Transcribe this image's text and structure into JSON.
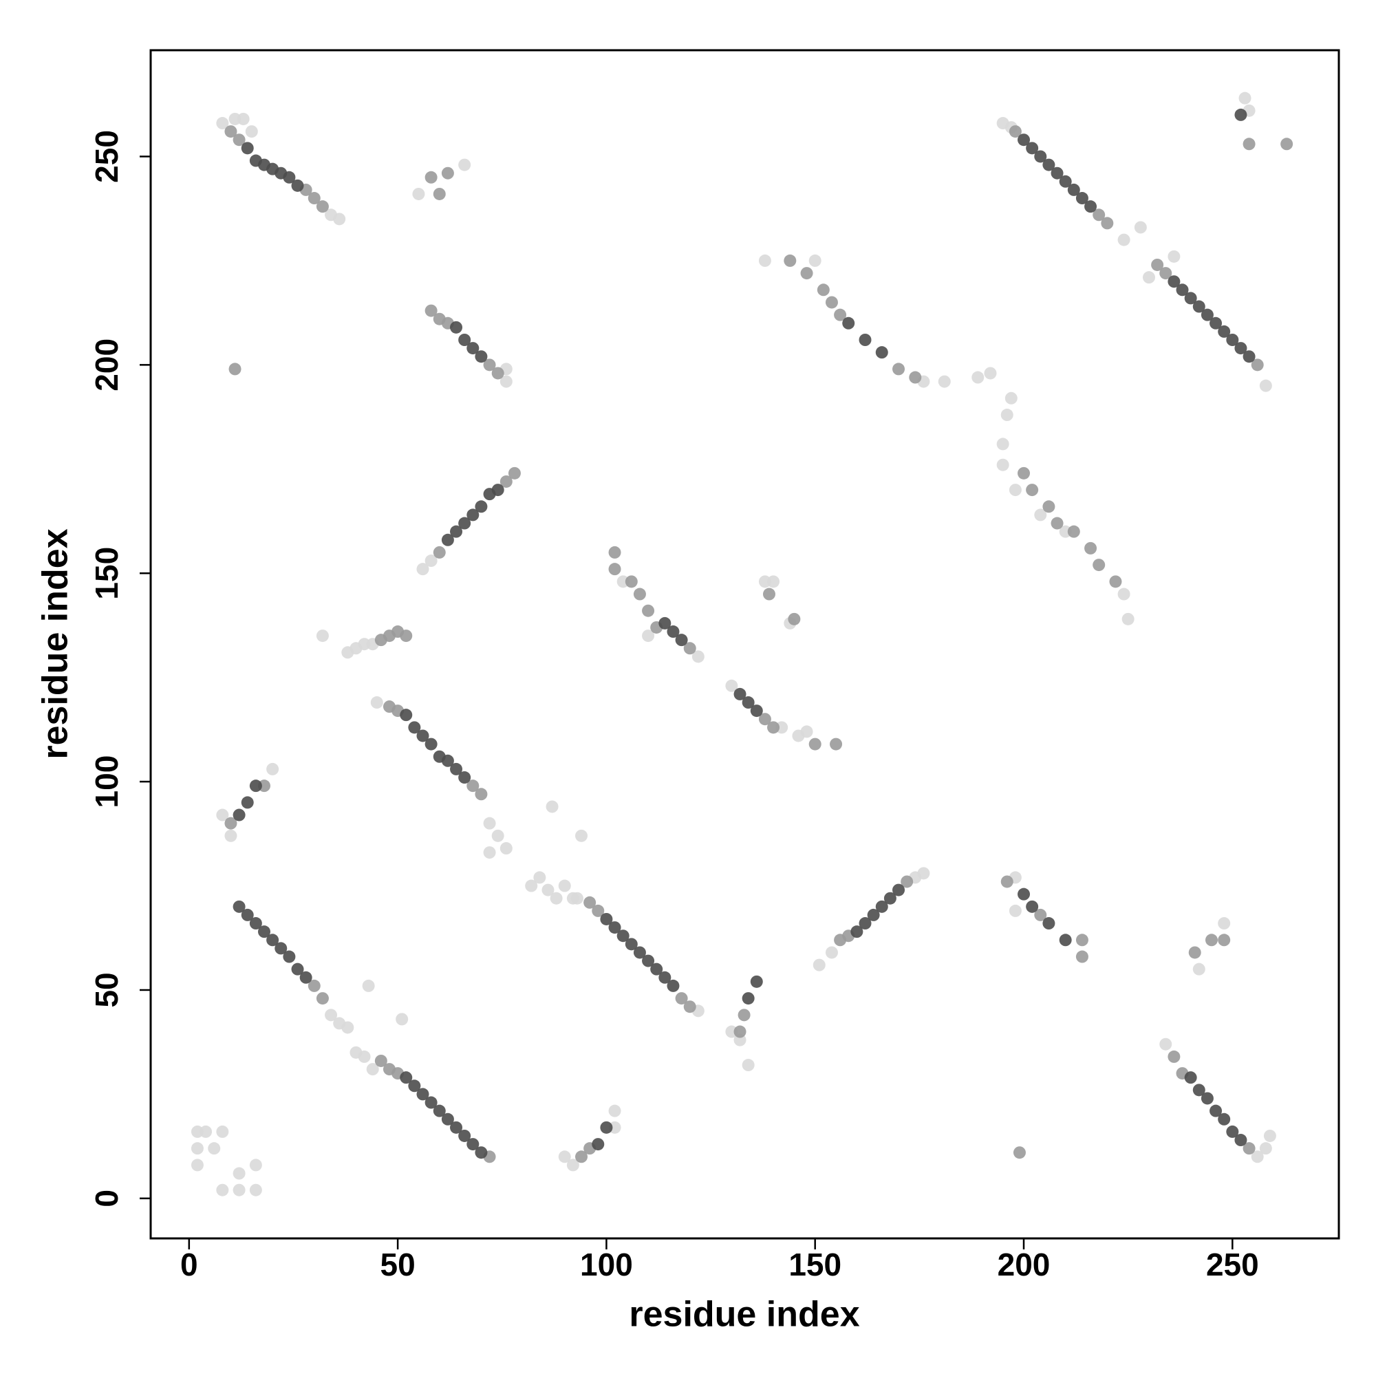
{
  "chart_data": {
    "type": "scatter",
    "xlabel": "residue index",
    "ylabel": "residue index",
    "xlim": [
      -9.2,
      275.5
    ],
    "ylim": [
      -9.6,
      275.5
    ],
    "xticks": [
      0,
      50,
      100,
      150,
      200,
      250
    ],
    "yticks": [
      0,
      50,
      100,
      150,
      200,
      250
    ],
    "series": [
      {
        "color": "#d9d9d9",
        "x": [
          8,
          11,
          13,
          15,
          34,
          36,
          55,
          66,
          76,
          76,
          56,
          58,
          32,
          38,
          40,
          42,
          44,
          45,
          72,
          74,
          76,
          72,
          8,
          10,
          20,
          34,
          36,
          38,
          40,
          42,
          44,
          2,
          4,
          2,
          6,
          2,
          8,
          12,
          12,
          16,
          8,
          16,
          43,
          51,
          82,
          84,
          86,
          88,
          90,
          87,
          94,
          92,
          90,
          92,
          102,
          102,
          93,
          122,
          104,
          110,
          122,
          130,
          142,
          146,
          148,
          130,
          132,
          134,
          138,
          140,
          144,
          138,
          150,
          176,
          181,
          151,
          154,
          174,
          176,
          189,
          192,
          196,
          197,
          195,
          195,
          198,
          204,
          210,
          224,
          225,
          198,
          198,
          195,
          197,
          224,
          228,
          230,
          236,
          258,
          253,
          254,
          242,
          248,
          234,
          256,
          258,
          259
        ],
        "y": [
          258,
          259,
          259,
          256,
          236,
          235,
          241,
          248,
          199,
          196,
          151,
          153,
          135,
          131,
          132,
          133,
          133,
          119,
          90,
          87,
          84,
          83,
          92,
          87,
          103,
          44,
          42,
          41,
          35,
          34,
          31,
          16,
          16,
          12,
          12,
          8,
          2,
          2,
          6,
          2,
          16,
          8,
          51,
          43,
          75,
          77,
          74,
          72,
          75,
          94,
          87,
          72,
          10,
          8,
          21,
          17,
          72,
          45,
          148,
          135,
          130,
          123,
          113,
          111,
          112,
          40,
          38,
          32,
          148,
          148,
          138,
          225,
          225,
          196,
          196,
          56,
          59,
          77,
          78,
          197,
          198,
          188,
          192,
          181,
          176,
          170,
          164,
          160,
          145,
          139,
          77,
          69,
          258,
          257,
          230,
          233,
          221,
          226,
          195,
          264,
          261,
          55,
          66,
          37,
          10,
          12,
          15
        ]
      },
      {
        "color": "#9a9a9a",
        "x": [
          10,
          12,
          28,
          30,
          32,
          58,
          60,
          62,
          58,
          60,
          62,
          72,
          74,
          60,
          76,
          78,
          50,
          52,
          46,
          48,
          48,
          50,
          68,
          70,
          10,
          18,
          30,
          32,
          46,
          48,
          50,
          72,
          94,
          96,
          96,
          98,
          118,
          120,
          102,
          102,
          106,
          108,
          110,
          112,
          120,
          138,
          140,
          150,
          155,
          132,
          133,
          139,
          145,
          144,
          148,
          152,
          154,
          156,
          170,
          174,
          156,
          158,
          172,
          200,
          202,
          206,
          208,
          212,
          216,
          218,
          222,
          196,
          204,
          214,
          214,
          198,
          218,
          220,
          232,
          234,
          256,
          254,
          263,
          199,
          241,
          245,
          248,
          236,
          238,
          254,
          11
        ],
        "y": [
          256,
          254,
          242,
          240,
          238,
          245,
          241,
          246,
          213,
          211,
          210,
          200,
          198,
          155,
          172,
          174,
          136,
          135,
          134,
          135,
          118,
          117,
          99,
          97,
          90,
          99,
          51,
          48,
          33,
          31,
          30,
          10,
          10,
          12,
          71,
          69,
          48,
          46,
          155,
          151,
          148,
          145,
          141,
          137,
          132,
          115,
          113,
          109,
          109,
          40,
          44,
          145,
          139,
          225,
          222,
          218,
          215,
          212,
          199,
          197,
          62,
          63,
          76,
          174,
          170,
          166,
          162,
          160,
          156,
          152,
          148,
          76,
          68,
          62,
          58,
          256,
          236,
          234,
          224,
          222,
          200,
          253,
          253,
          11,
          59,
          62,
          62,
          34,
          30,
          12,
          199
        ]
      },
      {
        "color": "#4d4d4d",
        "x": [
          14,
          16,
          18,
          20,
          22,
          24,
          26,
          64,
          66,
          68,
          70,
          62,
          64,
          66,
          68,
          70,
          72,
          74,
          52,
          54,
          56,
          58,
          60,
          62,
          64,
          66,
          14,
          16,
          12,
          12,
          14,
          16,
          18,
          20,
          22,
          24,
          26,
          28,
          52,
          54,
          56,
          58,
          60,
          62,
          64,
          66,
          68,
          70,
          98,
          100,
          100,
          102,
          104,
          106,
          108,
          110,
          112,
          114,
          116,
          114,
          116,
          118,
          132,
          134,
          136,
          134,
          136,
          158,
          162,
          166,
          160,
          162,
          164,
          166,
          168,
          170,
          200,
          202,
          206,
          210,
          200,
          202,
          204,
          206,
          208,
          210,
          212,
          214,
          216,
          236,
          238,
          240,
          242,
          244,
          246,
          248,
          250,
          252,
          254,
          240,
          242,
          244,
          246,
          248,
          250,
          252,
          252
        ],
        "y": [
          252,
          249,
          248,
          247,
          246,
          245,
          243,
          209,
          206,
          204,
          202,
          158,
          160,
          162,
          164,
          166,
          169,
          170,
          116,
          113,
          111,
          109,
          106,
          105,
          103,
          101,
          95,
          99,
          92,
          70,
          68,
          66,
          64,
          62,
          60,
          58,
          55,
          53,
          29,
          27,
          25,
          23,
          21,
          19,
          17,
          15,
          13,
          11,
          13,
          17,
          67,
          65,
          63,
          61,
          59,
          57,
          55,
          53,
          51,
          138,
          136,
          134,
          121,
          119,
          117,
          48,
          52,
          210,
          206,
          203,
          64,
          66,
          68,
          70,
          72,
          74,
          73,
          70,
          66,
          62,
          254,
          252,
          250,
          248,
          246,
          244,
          242,
          240,
          238,
          220,
          218,
          216,
          214,
          212,
          210,
          208,
          206,
          204,
          202,
          29,
          26,
          24,
          21,
          19,
          16,
          14,
          260
        ]
      }
    ]
  }
}
